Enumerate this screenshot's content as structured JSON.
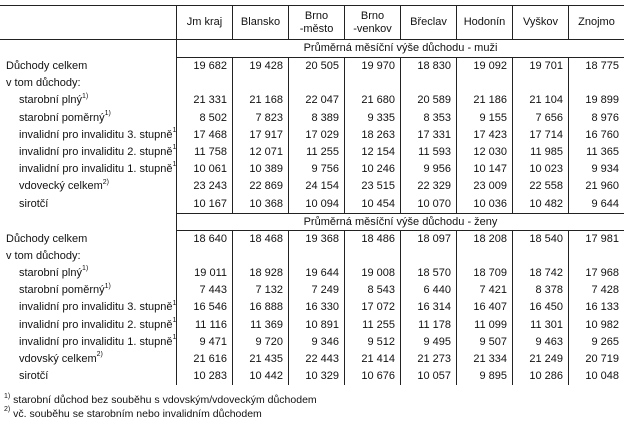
{
  "table": {
    "columns": [
      "Jm kraj",
      "Blansko",
      "Brno\n-město",
      "Brno\n-venkov",
      "Břeclav",
      "Hodonín",
      "Vyškov",
      "Znojmo"
    ],
    "sections": [
      {
        "title": "Průměrná měsíční výše důchodu - muži",
        "rows": [
          {
            "label": "Důchody celkem",
            "sup": "",
            "indent": false,
            "values": [
              "19 682",
              "19 428",
              "20 505",
              "19 970",
              "18 830",
              "19 092",
              "19 701",
              "18 775"
            ]
          },
          {
            "label": "v tom důchody:",
            "sup": "",
            "indent": false,
            "values": []
          },
          {
            "label": "starobní plný",
            "sup": "1)",
            "indent": true,
            "values": [
              "21 331",
              "21 168",
              "22 047",
              "21 680",
              "20 589",
              "21 186",
              "21 104",
              "19 899"
            ]
          },
          {
            "label": "starobní poměrný",
            "sup": "1)",
            "indent": true,
            "values": [
              "8 502",
              "7 823",
              "8 389",
              "9 335",
              "8 353",
              "9 155",
              "7 656",
              "8 976"
            ]
          },
          {
            "label": "invalidní pro invaliditu 3. stupně",
            "sup": "1)",
            "indent": true,
            "values": [
              "17 468",
              "17 917",
              "17 029",
              "18 263",
              "17 331",
              "17 423",
              "17 714",
              "16 760"
            ]
          },
          {
            "label": "invalidní pro invaliditu 2. stupně",
            "sup": "1)",
            "indent": true,
            "values": [
              "11 758",
              "12 071",
              "11 255",
              "12 154",
              "11 593",
              "12 030",
              "11 985",
              "11 365"
            ]
          },
          {
            "label": "invalidní pro invaliditu 1. stupně",
            "sup": "1)",
            "indent": true,
            "values": [
              "10 061",
              "10 389",
              "9 756",
              "10 246",
              "9 956",
              "10 147",
              "10 023",
              "9 934"
            ]
          },
          {
            "label": "vdovecký celkem",
            "sup": "2)",
            "indent": true,
            "values": [
              "23 243",
              "22 869",
              "24 154",
              "23 515",
              "22 329",
              "23 009",
              "22 558",
              "21 960"
            ]
          },
          {
            "label": "sirotčí",
            "sup": "",
            "indent": true,
            "values": [
              "10 167",
              "10 368",
              "10 094",
              "10 454",
              "10 070",
              "10 036",
              "10 482",
              "9 644"
            ]
          }
        ]
      },
      {
        "title": "Průměrná měsíční výše důchodu - ženy",
        "rows": [
          {
            "label": "Důchody celkem",
            "sup": "",
            "indent": false,
            "values": [
              "18 640",
              "18 468",
              "19 368",
              "18 486",
              "18 097",
              "18 208",
              "18 540",
              "17 981"
            ]
          },
          {
            "label": "v tom důchody:",
            "sup": "",
            "indent": false,
            "values": []
          },
          {
            "label": "starobní plný",
            "sup": "1)",
            "indent": true,
            "values": [
              "19 011",
              "18 928",
              "19 644",
              "19 008",
              "18 570",
              "18 709",
              "18 742",
              "17 968"
            ]
          },
          {
            "label": "starobní poměrný",
            "sup": "1)",
            "indent": true,
            "values": [
              "7 443",
              "7 132",
              "7 249",
              "8 543",
              "6 440",
              "7 421",
              "8 378",
              "7 428"
            ]
          },
          {
            "label": "invalidní pro invaliditu 3. stupně",
            "sup": "1)",
            "indent": true,
            "values": [
              "16 546",
              "16 888",
              "16 330",
              "17 072",
              "16 314",
              "16 407",
              "16 450",
              "16 133"
            ]
          },
          {
            "label": "invalidní pro invaliditu 2. stupně",
            "sup": "1)",
            "indent": true,
            "values": [
              "11 116",
              "11 369",
              "10 891",
              "11 255",
              "11 178",
              "11 099",
              "11 301",
              "10 982"
            ]
          },
          {
            "label": "invalidní pro invaliditu 1. stupně",
            "sup": "1)",
            "indent": true,
            "values": [
              "9 471",
              "9 720",
              "9 346",
              "9 512",
              "9 495",
              "9 507",
              "9 463",
              "9 265"
            ]
          },
          {
            "label": "vdovský celkem",
            "sup": "2)",
            "indent": true,
            "values": [
              "21 616",
              "21 435",
              "22 443",
              "21 414",
              "21 273",
              "21 334",
              "21 249",
              "20 719"
            ]
          },
          {
            "label": "sirotčí",
            "sup": "",
            "indent": true,
            "values": [
              "10 283",
              "10 442",
              "10 329",
              "10 676",
              "10 057",
              "9 895",
              "10 286",
              "10 048"
            ]
          }
        ]
      }
    ],
    "footnotes": [
      {
        "sup": "1)",
        "text": "starobní důchod bez souběhu s vdovským/vdoveckým důchodem"
      },
      {
        "sup": "2)",
        "text": "vč. souběhu se starobním nebo invalidním důchodem"
      }
    ]
  },
  "colors": {
    "border": "#222222",
    "text": "#111111",
    "background": "#ffffff"
  }
}
